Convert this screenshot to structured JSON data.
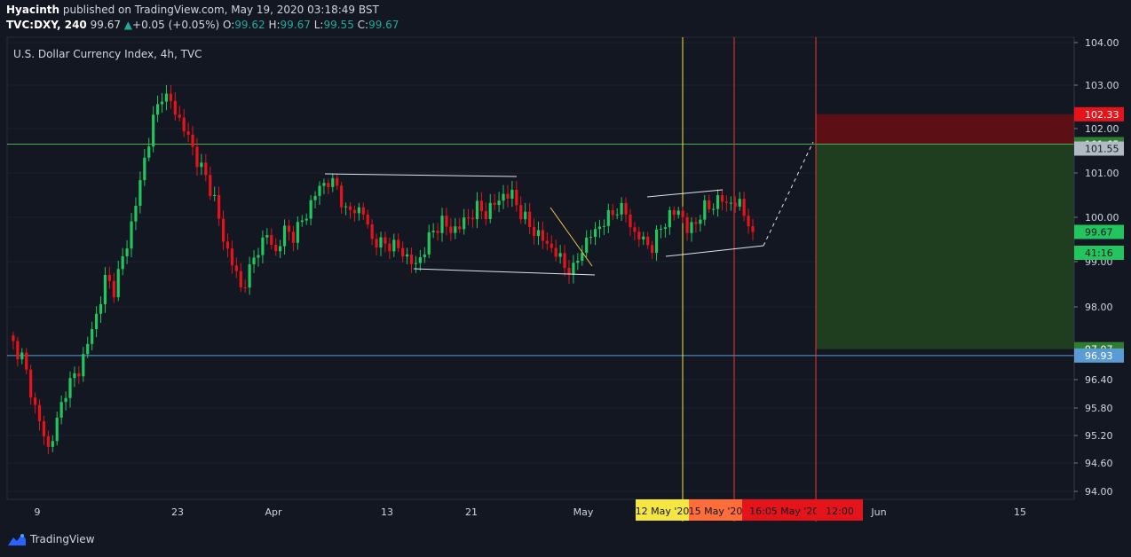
{
  "header": {
    "author": "Hyacinth",
    "published_text": "published on TradingView.com, May 19, 2020 03:18:49 BST",
    "symbol": "TVC:DXY, 240",
    "last": "99.67",
    "change": "+0.05 (+0.05%)",
    "o_label": "O:",
    "o_value": "99.62",
    "h_label": "H:",
    "h_value": "99.67",
    "l_label": "L:",
    "l_value": "99.55",
    "c_label": "C:",
    "c_value": "99.67"
  },
  "footer": {
    "brand": "TradingView"
  },
  "colors": {
    "background": "#131722",
    "up": "#22c55e",
    "down": "#e5141b",
    "grid": "#2a2e39",
    "axis_text": "#d1d4dc",
    "green_line": "#4caf50",
    "blue_line": "#5b9bd5",
    "yellow_line": "#f5e642",
    "red_line": "#e53935",
    "stop_zone": "#5c1016",
    "target_zone": "#1f3d1f"
  },
  "chart_data": {
    "type": "candlestick",
    "title": "U.S. Dollar Currency Index, 4h, TVC",
    "ylim": [
      93.75,
      104.0
    ],
    "x_tick_labels": [
      "9",
      "23",
      "Apr",
      "13",
      "21",
      "May",
      "Jun",
      "15"
    ],
    "y_tick_labels": [
      "104.00",
      "103.00",
      "102.00",
      "101.00",
      "100.00",
      "99.00",
      "98.00",
      "96.40",
      "95.80",
      "95.20",
      "94.60",
      "94.00"
    ],
    "price_path": [
      [
        0,
        97.3
      ],
      [
        3,
        96.9
      ],
      [
        6,
        95.8
      ],
      [
        9,
        94.9
      ],
      [
        11,
        95.5
      ],
      [
        13,
        96.2
      ],
      [
        16,
        96.6
      ],
      [
        18,
        97.2
      ],
      [
        20,
        97.8
      ],
      [
        22,
        98.6
      ],
      [
        24,
        98.4
      ],
      [
        27,
        99.4
      ],
      [
        29,
        100.3
      ],
      [
        31,
        101.3
      ],
      [
        33,
        102.2
      ],
      [
        35,
        102.8
      ],
      [
        37,
        102.6
      ],
      [
        39,
        102.2
      ],
      [
        41,
        101.8
      ],
      [
        43,
        101.3
      ],
      [
        45,
        100.9
      ],
      [
        47,
        100.4
      ],
      [
        49,
        99.5
      ],
      [
        51,
        99.0
      ],
      [
        53,
        98.4
      ],
      [
        55,
        98.8
      ],
      [
        57,
        99.3
      ],
      [
        59,
        99.6
      ],
      [
        61,
        99.2
      ],
      [
        63,
        99.7
      ],
      [
        65,
        99.6
      ],
      [
        67,
        99.9
      ],
      [
        69,
        100.3
      ],
      [
        71,
        100.7
      ],
      [
        73,
        100.8
      ],
      [
        75,
        100.7
      ],
      [
        77,
        100.1
      ],
      [
        79,
        100.2
      ],
      [
        81,
        100.1
      ],
      [
        83,
        99.5
      ],
      [
        85,
        99.4
      ],
      [
        87,
        99.4
      ],
      [
        89,
        99.3
      ],
      [
        91,
        99.1
      ],
      [
        93,
        98.9
      ],
      [
        95,
        99.3
      ],
      [
        97,
        99.7
      ],
      [
        99,
        99.9
      ],
      [
        101,
        99.7
      ],
      [
        103,
        99.8
      ],
      [
        105,
        100.0
      ],
      [
        107,
        100.2
      ],
      [
        109,
        100.1
      ],
      [
        111,
        100.3
      ],
      [
        113,
        100.5
      ],
      [
        115,
        100.5
      ],
      [
        117,
        100.1
      ],
      [
        119,
        99.8
      ],
      [
        121,
        99.6
      ],
      [
        123,
        99.4
      ],
      [
        125,
        99.2
      ],
      [
        127,
        98.9
      ],
      [
        129,
        98.8
      ],
      [
        131,
        99.3
      ],
      [
        133,
        99.6
      ],
      [
        135,
        99.8
      ],
      [
        137,
        100.0
      ],
      [
        139,
        100.2
      ],
      [
        141,
        100.1
      ],
      [
        143,
        99.6
      ],
      [
        145,
        99.5
      ],
      [
        147,
        99.3
      ],
      [
        149,
        99.8
      ],
      [
        151,
        100.0
      ],
      [
        153,
        100.2
      ],
      [
        155,
        99.7
      ],
      [
        157,
        99.9
      ],
      [
        159,
        100.2
      ],
      [
        161,
        100.3
      ],
      [
        163,
        100.4
      ],
      [
        165,
        100.3
      ],
      [
        167,
        100.3
      ],
      [
        169,
        99.9
      ],
      [
        170,
        99.67
      ]
    ],
    "horizontal_lines": [
      {
        "price": 101.65,
        "color": "#4caf50"
      },
      {
        "price": 96.93,
        "color": "#5b9bd5"
      }
    ],
    "price_labels": [
      {
        "value": "102.33",
        "price": 102.33,
        "bg": "#e5141b",
        "fg": "#ffffff"
      },
      {
        "value": "101.65",
        "price": 101.65,
        "bg": "#2e7d32",
        "fg": "#ffffff"
      },
      {
        "value": "101.55",
        "price": 101.55,
        "bg": "#b2bac4",
        "fg": "#131722"
      },
      {
        "value": "99.67",
        "price": 99.67,
        "bg": "#22c55e",
        "fg": "#131722"
      },
      {
        "value": "41:16",
        "price": 99.2,
        "bg": "#22c55e",
        "fg": "#131722"
      },
      {
        "value": "97.07",
        "price": 97.07,
        "bg": "#2e7d32",
        "fg": "#ffffff"
      },
      {
        "value": "96.93",
        "price": 96.93,
        "bg": "#5b9bd5",
        "fg": "#ffffff"
      }
    ],
    "stop_zone": {
      "top": 102.33,
      "bottom": 101.65
    },
    "target_zone": {
      "top": 101.65,
      "bottom": 97.07
    },
    "date_labels": [
      {
        "text": "12 May '20",
        "bg": "#f5e642",
        "fg": "#131722"
      },
      {
        "text": "15 May '20",
        "bg": "#ff6d3a",
        "fg": "#131722"
      },
      {
        "text": "16:00",
        "bg": "#e5141b",
        "fg": "#131722"
      },
      {
        "text": "5 May '20",
        "bg": "#e5141b",
        "fg": "#131722"
      },
      {
        "text": "12:00",
        "bg": "#e5141b",
        "fg": "#131722"
      }
    ]
  }
}
